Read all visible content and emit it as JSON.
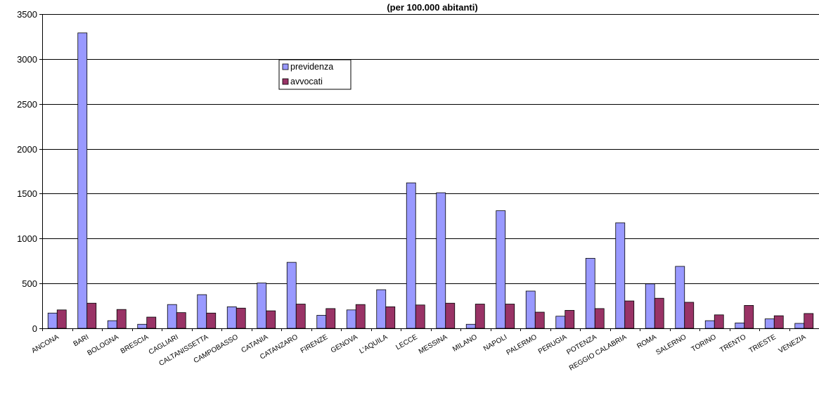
{
  "chart_data": {
    "type": "bar",
    "title": "(per 100.000 abitanti)",
    "xlabel": "",
    "ylabel": "",
    "ylim": [
      0,
      3500
    ],
    "yticks": [
      0,
      500,
      1000,
      1500,
      2000,
      2500,
      3000,
      3500
    ],
    "grid": "horizontal",
    "legend_position": "upper-center",
    "categories": [
      "ANCONA",
      "BARI",
      "BOLOGNA",
      "BRESCIA",
      "CAGLIARI",
      "CALTANISSETTA",
      "CAMPOBASSO",
      "CATANIA",
      "CATANZARO",
      "FIRENZE",
      "GENOVA",
      "L'AQUILA",
      "LECCE",
      "MESSINA",
      "MILANO",
      "NAPOLI",
      "PALERMO",
      "PERUGIA",
      "POTENZA",
      "REGGIO CALABRIA",
      "ROMA",
      "SALERNO",
      "TORINO",
      "TRENTO",
      "TRIESTE",
      "VENEZIA"
    ],
    "series": [
      {
        "name": "previdenza",
        "color": "#9999ff",
        "values": [
          170,
          3290,
          85,
          45,
          265,
          375,
          240,
          505,
          735,
          145,
          205,
          430,
          1620,
          1510,
          45,
          1310,
          415,
          135,
          780,
          1175,
          495,
          690,
          85,
          60,
          105,
          55
        ]
      },
      {
        "name": "avvocati",
        "color": "#993366",
        "values": [
          205,
          280,
          210,
          125,
          175,
          170,
          225,
          195,
          270,
          220,
          265,
          240,
          260,
          280,
          270,
          270,
          180,
          200,
          220,
          305,
          335,
          290,
          150,
          255,
          140,
          165
        ]
      }
    ]
  }
}
